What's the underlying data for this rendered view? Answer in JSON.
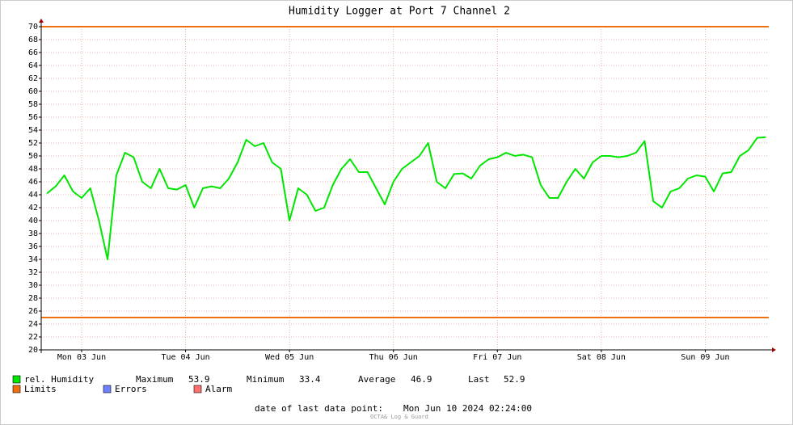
{
  "chart_data": {
    "type": "line",
    "title": "Humidity Logger at Port 7 Channel 2",
    "x": [
      "2024-06-03T04:00",
      "2024-06-03T06:00",
      "2024-06-03T08:00",
      "2024-06-03T10:00",
      "2024-06-03T12:00",
      "2024-06-03T14:00",
      "2024-06-03T16:00",
      "2024-06-03T18:00",
      "2024-06-03T20:00",
      "2024-06-03T22:00",
      "2024-06-04T00:00",
      "2024-06-04T02:00",
      "2024-06-04T04:00",
      "2024-06-04T06:00",
      "2024-06-04T08:00",
      "2024-06-04T10:00",
      "2024-06-04T12:00",
      "2024-06-04T14:00",
      "2024-06-04T16:00",
      "2024-06-04T18:00",
      "2024-06-04T20:00",
      "2024-06-04T22:00",
      "2024-06-05T00:00",
      "2024-06-05T02:00",
      "2024-06-05T04:00",
      "2024-06-05T06:00",
      "2024-06-05T08:00",
      "2024-06-05T10:00",
      "2024-06-05T12:00",
      "2024-06-05T14:00",
      "2024-06-05T16:00",
      "2024-06-05T18:00",
      "2024-06-05T20:00",
      "2024-06-05T22:00",
      "2024-06-06T00:00",
      "2024-06-06T02:00",
      "2024-06-06T04:00",
      "2024-06-06T06:00",
      "2024-06-06T08:00",
      "2024-06-06T10:00",
      "2024-06-06T12:00",
      "2024-06-06T14:00",
      "2024-06-06T16:00",
      "2024-06-06T18:00",
      "2024-06-06T20:00",
      "2024-06-06T22:00",
      "2024-06-07T00:00",
      "2024-06-07T02:00",
      "2024-06-07T04:00",
      "2024-06-07T06:00",
      "2024-06-07T08:00",
      "2024-06-07T10:00",
      "2024-06-07T12:00",
      "2024-06-07T14:00",
      "2024-06-07T16:00",
      "2024-06-07T18:00",
      "2024-06-07T20:00",
      "2024-06-07T22:00",
      "2024-06-08T00:00",
      "2024-06-08T02:00",
      "2024-06-08T04:00",
      "2024-06-08T06:00",
      "2024-06-08T08:00",
      "2024-06-08T10:00",
      "2024-06-08T12:00",
      "2024-06-08T14:00",
      "2024-06-08T16:00",
      "2024-06-08T18:00",
      "2024-06-08T20:00",
      "2024-06-08T22:00",
      "2024-06-09T00:00",
      "2024-06-09T02:00",
      "2024-06-09T04:00",
      "2024-06-09T06:00",
      "2024-06-09T08:00",
      "2024-06-09T10:00",
      "2024-06-09T12:00",
      "2024-06-09T14:00",
      "2024-06-09T16:00",
      "2024-06-09T18:00",
      "2024-06-09T20:00",
      "2024-06-09T22:00",
      "2024-06-10T00:00",
      "2024-06-10T02:00"
    ],
    "series": [
      {
        "name": "rel. Humidity",
        "color": "#00e600",
        "values": [
          44.2,
          45.3,
          47,
          44.5,
          43.5,
          45,
          40,
          34,
          47,
          50.5,
          49.8,
          46,
          45,
          48,
          45,
          44.8,
          45.5,
          42,
          45,
          45.3,
          45,
          46.5,
          49,
          52.5,
          51.5,
          52,
          49,
          48,
          40,
          45,
          44,
          41.5,
          42,
          45.5,
          48,
          49.5,
          47.5,
          47.5,
          45,
          42.5,
          46,
          48,
          49,
          50,
          52,
          46,
          45,
          47.2,
          47.3,
          46.5,
          48.5,
          49.5,
          49.8,
          50.5,
          50,
          50.2,
          49.8,
          45.5,
          43.5,
          43.5,
          46,
          48,
          46.5,
          49,
          50,
          50,
          49.8,
          50,
          50.5,
          52.3,
          43,
          42,
          44.5,
          45,
          46.5,
          47,
          46.8,
          44.5,
          47.3,
          47.5,
          50,
          50.9,
          52.8,
          52.9
        ]
      }
    ],
    "limits": {
      "name": "Limits",
      "color": "#f07010",
      "values": [
        70,
        25
      ]
    },
    "legend_extra": [
      {
        "name": "Errors",
        "color": "#7080ff"
      },
      {
        "name": "Alarm",
        "color": "#ff7070"
      }
    ],
    "stats": [
      {
        "label": "Maximum",
        "value": 53.9
      },
      {
        "label": "Minimum",
        "value": 33.4
      },
      {
        "label": "Average",
        "value": 46.9
      },
      {
        "label": "Last",
        "value": 52.9
      }
    ],
    "last_point_label": "date of last data point:",
    "last_point": "Mon Jun 10 2024 02:24:00",
    "watermark": "OCTA& Log & Guard",
    "xlim": [
      "2024-06-03T02:40",
      "2024-06-10T02:40"
    ],
    "xticks": [
      {
        "value": "2024-06-03T12:00",
        "label": "Mon 03 Jun"
      },
      {
        "value": "2024-06-04T12:00",
        "label": "Tue 04 Jun"
      },
      {
        "value": "2024-06-05T12:00",
        "label": "Wed 05 Jun"
      },
      {
        "value": "2024-06-06T12:00",
        "label": "Thu 06 Jun"
      },
      {
        "value": "2024-06-07T12:00",
        "label": "Fri 07 Jun"
      },
      {
        "value": "2024-06-08T12:00",
        "label": "Sat 08 Jun"
      },
      {
        "value": "2024-06-09T12:00",
        "label": "Sun 09 Jun"
      }
    ],
    "ylim": [
      20,
      70
    ],
    "yticks": [
      20,
      22,
      24,
      26,
      28,
      30,
      32,
      34,
      36,
      38,
      40,
      42,
      44,
      46,
      48,
      50,
      52,
      54,
      56,
      58,
      60,
      62,
      64,
      66,
      68,
      70
    ],
    "grid": true
  }
}
